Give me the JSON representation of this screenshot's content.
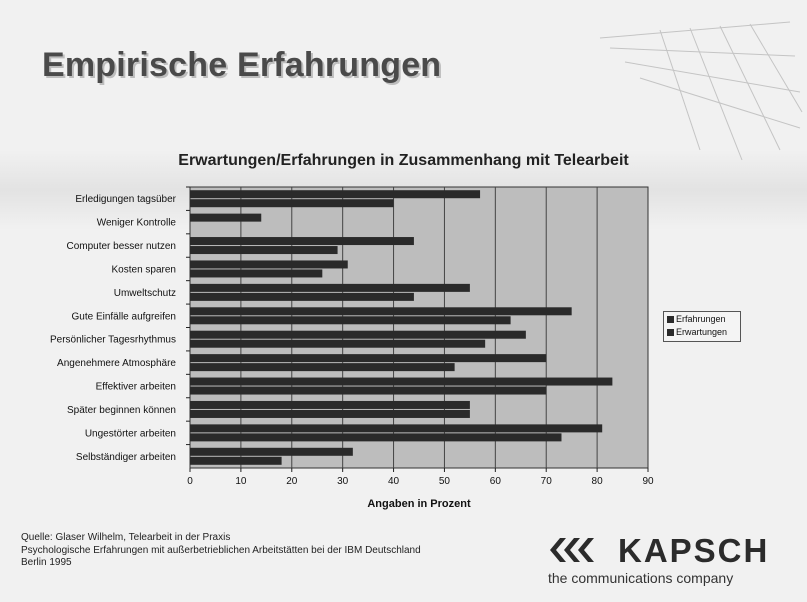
{
  "slide": {
    "title": "Empirische Erfahrungen"
  },
  "source": {
    "lines": [
      "Quelle: Glaser Wilhelm, Telearbeit in der Praxis",
      "Psychologische Erfahrungen mit außerbetrieblichen Arbeitstätten bei der IBM  Deutschland",
      "Berlin 1995"
    ]
  },
  "logo": {
    "name": "KAPSCH",
    "tagline": "the communications company"
  },
  "colors": {
    "bar": "#2a2a2a",
    "plot_background": "#bdbdbd",
    "gridline": "#444444"
  },
  "chart_data": {
    "type": "bar",
    "orientation": "horizontal",
    "title": "Erwartungen/Erfahrungen in Zusammenhang mit Telearbeit",
    "xlabel": "Angaben in Prozent",
    "ylabel": "",
    "xlim": [
      0,
      90
    ],
    "xticks": [
      0,
      10,
      20,
      30,
      40,
      50,
      60,
      70,
      80,
      90
    ],
    "grid": true,
    "legend_position": "right",
    "categories": [
      "Erledigungen tagsüber",
      "Weniger Kontrolle",
      "Computer besser nutzen",
      "Kosten sparen",
      "Umweltschutz",
      "Gute Einfälle aufgreifen",
      "Persönlicher Tagesrhythmus",
      "Angenehmere Atmosphäre",
      "Effektiver arbeiten",
      "Später beginnen können",
      "Ungestörter arbeiten",
      "Selbständiger arbeiten"
    ],
    "series": [
      {
        "name": "Erfahrungen",
        "values": [
          57,
          14,
          44,
          31,
          55,
          75,
          66,
          70,
          83,
          55,
          81,
          32
        ]
      },
      {
        "name": "Erwartungen",
        "values": [
          40,
          0,
          29,
          26,
          44,
          63,
          58,
          52,
          70,
          55,
          73,
          18
        ]
      }
    ]
  }
}
